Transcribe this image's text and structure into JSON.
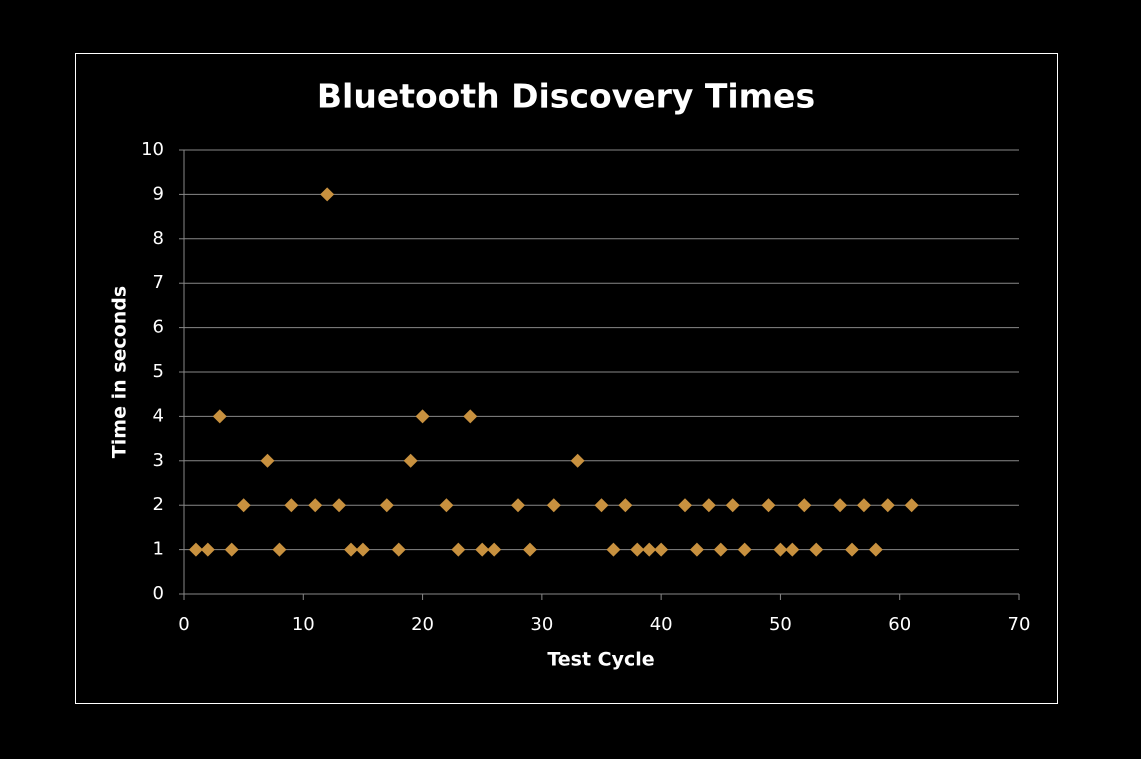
{
  "chart_data": {
    "type": "scatter",
    "title": "Bluetooth Discovery Times",
    "x_label": "Test Cycle",
    "y_label": "Time in seconds",
    "series": [
      {
        "color": "#c8913f",
        "x": [
          1,
          2,
          3,
          4,
          5,
          7,
          8,
          9,
          11,
          12,
          13,
          14,
          15,
          17,
          18,
          19,
          20,
          22,
          23,
          24,
          25,
          26,
          28,
          29,
          31,
          33,
          35,
          36,
          37,
          38,
          39,
          40,
          42,
          43,
          44,
          45,
          46,
          47,
          49,
          50,
          51,
          52,
          53,
          55,
          56,
          57,
          58,
          59,
          61
        ],
        "values": [
          1,
          1,
          4,
          1,
          2,
          3,
          1,
          2,
          2,
          9,
          2,
          1,
          1,
          2,
          1,
          3,
          4,
          2,
          1,
          4,
          1,
          1,
          2,
          1,
          2,
          3,
          2,
          1,
          2,
          1,
          1,
          1,
          2,
          1,
          2,
          1,
          2,
          1,
          2,
          1,
          1,
          2,
          1,
          2,
          1,
          2,
          1,
          2,
          2
        ]
      }
    ],
    "xlim": [
      0,
      70
    ],
    "xticks": [
      0,
      10,
      20,
      30,
      40,
      50,
      60,
      70
    ],
    "ylim": [
      0,
      10
    ],
    "yticks": [
      0,
      1,
      2,
      3,
      4,
      5,
      6,
      7,
      8,
      9,
      10
    ],
    "grid": true
  }
}
